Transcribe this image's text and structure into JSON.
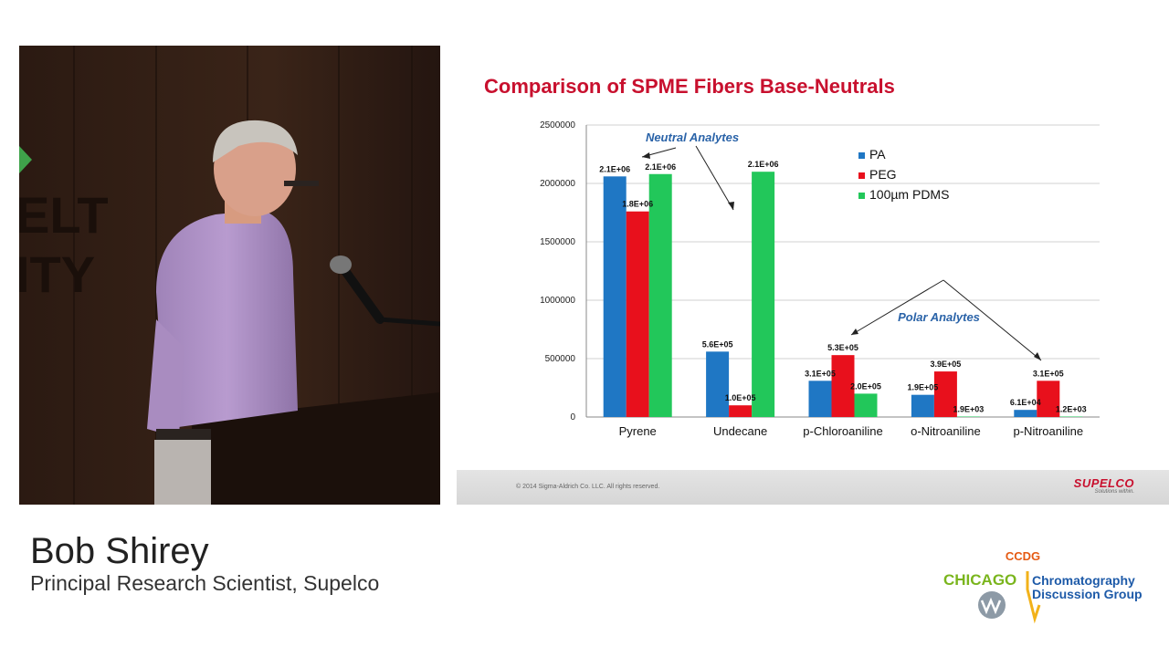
{
  "slide": {
    "title": "Comparison of SPME Fibers Base-Neutrals",
    "copyright": "© 2014 Sigma-Aldrich Co. LLC. All rights reserved.",
    "brand": "SUPELCO",
    "brand_tagline": "Solutions within."
  },
  "speaker": {
    "name": "Bob Shirey",
    "title": "Principal Research Scientist, Supelco"
  },
  "org_logo": {
    "acronym": "CCDG",
    "city": "CHICAGO",
    "line1": "Chromatography",
    "line2": "Discussion Group"
  },
  "video": {
    "background_sign_text": [
      "ELT",
      "ITY"
    ]
  },
  "chart_data": {
    "type": "bar",
    "title": "",
    "categories": [
      "Pyrene",
      "Undecane",
      "p-Chloroaniline",
      "o-Nitroaniline",
      "p-Nitroaniline"
    ],
    "series": [
      {
        "name": "PA",
        "color": "#1f77c4",
        "values": [
          2060000,
          560000,
          310000,
          190000,
          61000
        ],
        "labels": [
          "2.1E+06",
          "5.6E+05",
          "3.1E+05",
          "1.9E+05",
          "6.1E+04"
        ]
      },
      {
        "name": "PEG",
        "color": "#e8101c",
        "values": [
          1760000,
          100000,
          530000,
          390000,
          310000
        ],
        "labels": [
          "1.8E+06",
          "1.0E+05",
          "5.3E+05",
          "3.9E+05",
          "3.1E+05"
        ]
      },
      {
        "name": "100µm PDMS",
        "color": "#22c75a",
        "values": [
          2080000,
          2100000,
          200000,
          1900,
          1200
        ],
        "labels": [
          "2.1E+06",
          "2.1E+06",
          "2.0E+05",
          "1.9E+03",
          "1.2E+03"
        ]
      }
    ],
    "ylim": [
      0,
      2500000
    ],
    "yticks": [
      0,
      500000,
      1000000,
      1500000,
      2000000,
      2500000
    ],
    "ytick_labels": [
      "0",
      "500000",
      "1000000",
      "1500000",
      "2000000",
      "2500000"
    ],
    "grid": true,
    "legend_position": "top-right",
    "annotations": [
      {
        "text": "Neutral Analytes",
        "color": "#2a63a8"
      },
      {
        "text": "Polar Analytes",
        "color": "#2a63a8"
      }
    ]
  }
}
